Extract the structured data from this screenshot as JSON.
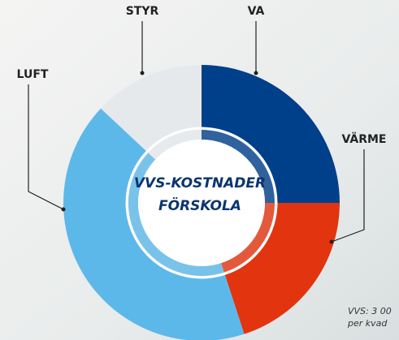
{
  "chart_data": {
    "type": "donut",
    "title": [
      "VVS-KOSTNADER",
      "FÖRSKOLA"
    ],
    "categories": [
      "VA",
      "VÄRME",
      "LUFT",
      "STYR"
    ],
    "values": [
      25,
      20,
      42,
      13
    ],
    "colors": [
      "#003f8a",
      "#e2340f",
      "#5db8ea",
      "#e6e9ec"
    ],
    "note": [
      "VVS: 3 00",
      "per kvad"
    ]
  }
}
